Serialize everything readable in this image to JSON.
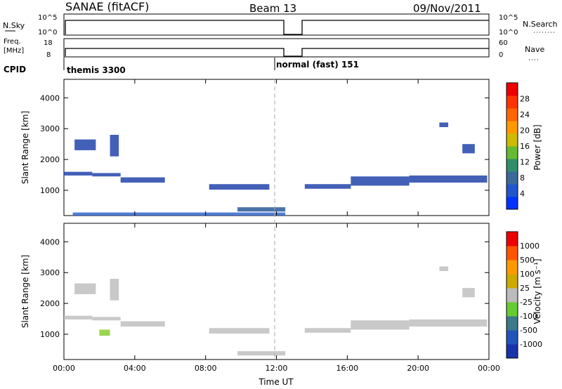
{
  "header": {
    "station": "SANAE (fitACF)",
    "beam": "Beam 13",
    "date": "09/Nov/2011"
  },
  "left_labels": {
    "nsky": "N.Sky",
    "freq": "Freq.",
    "freq_unit": "[MHz]",
    "cpid": "CPID"
  },
  "right_labels": {
    "nsearch": "N.Search",
    "nave": "Nave"
  },
  "ticks": {
    "nsky_top": "10^5",
    "nsky_bottom": "10^0",
    "freq_top": "18",
    "freq_bottom": "8",
    "nave_top": "60",
    "nave_bottom": "0"
  },
  "cpid_labels": {
    "first": "themis 3300",
    "second": "normal (fast) 151"
  },
  "chart_data": [
    {
      "type": "heatmap",
      "panel": "power",
      "xlabel": "",
      "ylabel": "Slant Range [km]",
      "x_ticks": [
        "00:00",
        "04:00",
        "08:00",
        "12:00",
        "16:00",
        "20:00",
        "00:00"
      ],
      "x_range_hours": [
        0,
        24
      ],
      "y_ticks": [
        1000,
        2000,
        3000,
        4000
      ],
      "y_range_km": [
        180,
        4600
      ],
      "colorbar_label": "Power [dB]",
      "colorbar_ticks": [
        "4",
        "8",
        "12",
        "16",
        "20",
        "24",
        "28"
      ],
      "colorbar_colors": [
        "#0033ff",
        "#2255cc",
        "#3a6a9a",
        "#2f8f6a",
        "#66bb33",
        "#ccbb00",
        "#ff9900",
        "#ff6600",
        "#ff3300",
        "#ee0000"
      ],
      "data_gap_hours": [
        12.6,
        13.5
      ],
      "bands": [
        {
          "x": [
            0,
            1.6
          ],
          "y": [
            1480,
            1600
          ],
          "color": "#2244aa"
        },
        {
          "x": [
            1.6,
            3.2
          ],
          "y": [
            1450,
            1560
          ],
          "color": "#2244aa"
        },
        {
          "x": [
            3.2,
            5.7
          ],
          "y": [
            1250,
            1420
          ],
          "color": "#2244aa"
        },
        {
          "x": [
            8.2,
            11.6
          ],
          "y": [
            1020,
            1200
          ],
          "color": "#2244aa"
        },
        {
          "x": [
            9.8,
            12.5
          ],
          "y": [
            310,
            450
          ],
          "color": "#2a5a9a"
        },
        {
          "x": [
            13.6,
            16.2
          ],
          "y": [
            1050,
            1200
          ],
          "color": "#2244aa"
        },
        {
          "x": [
            16.2,
            19.5
          ],
          "y": [
            1150,
            1450
          ],
          "color": "#2244aa"
        },
        {
          "x": [
            19.5,
            23.9
          ],
          "y": [
            1250,
            1480
          ],
          "color": "#2244aa"
        },
        {
          "x": [
            0.6,
            1.8
          ],
          "y": [
            2300,
            2650
          ],
          "color": "#2244aa"
        },
        {
          "x": [
            2.6,
            3.1
          ],
          "y": [
            2100,
            2800
          ],
          "color": "#2244aa"
        },
        {
          "x": [
            22.5,
            23.2
          ],
          "y": [
            2200,
            2500
          ],
          "color": "#2244aa"
        },
        {
          "x": [
            21.2,
            21.7
          ],
          "y": [
            3050,
            3200
          ],
          "color": "#2244aa"
        },
        {
          "x": [
            0.5,
            12.5
          ],
          "y": [
            180,
            280
          ],
          "color": "#3366cc"
        }
      ]
    },
    {
      "type": "heatmap",
      "panel": "velocity",
      "xlabel": "Time UT",
      "ylabel": "Slant Range [km]",
      "x_ticks": [
        "00:00",
        "04:00",
        "08:00",
        "12:00",
        "16:00",
        "20:00",
        "00:00"
      ],
      "x_range_hours": [
        0,
        24
      ],
      "y_ticks": [
        1000,
        2000,
        3000,
        4000
      ],
      "y_range_km": [
        180,
        4600
      ],
      "colorbar_label": "Velocity [m s⁻¹]",
      "colorbar_ticks": [
        "1000",
        "500",
        "100",
        "25",
        "-25",
        "-100",
        "-500",
        "-1000"
      ],
      "colorbar_colors": [
        "#1a33aa",
        "#2255bb",
        "#3a7a8a",
        "#66cc33",
        "#bbbbbb",
        "#ccaa00",
        "#ff9900",
        "#ff5500",
        "#ee0000"
      ],
      "data_gap_hours": [
        12.6,
        13.5
      ],
      "bands": [
        {
          "x": [
            0,
            1.6
          ],
          "y": [
            1480,
            1600
          ],
          "color": "#c0c0c0"
        },
        {
          "x": [
            1.6,
            3.2
          ],
          "y": [
            1450,
            1560
          ],
          "color": "#c0c0c0"
        },
        {
          "x": [
            3.2,
            5.7
          ],
          "y": [
            1250,
            1420
          ],
          "color": "#c0c0c0"
        },
        {
          "x": [
            8.2,
            11.6
          ],
          "y": [
            1020,
            1200
          ],
          "color": "#c0c0c0"
        },
        {
          "x": [
            9.8,
            12.5
          ],
          "y": [
            310,
            450
          ],
          "color": "#c0c0c0"
        },
        {
          "x": [
            13.6,
            16.2
          ],
          "y": [
            1050,
            1200
          ],
          "color": "#c0c0c0"
        },
        {
          "x": [
            16.2,
            19.5
          ],
          "y": [
            1150,
            1450
          ],
          "color": "#c0c0c0"
        },
        {
          "x": [
            19.5,
            23.9
          ],
          "y": [
            1250,
            1480
          ],
          "color": "#c0c0c0"
        },
        {
          "x": [
            0.6,
            1.8
          ],
          "y": [
            2300,
            2650
          ],
          "color": "#c0c0c0"
        },
        {
          "x": [
            2.6,
            3.1
          ],
          "y": [
            2100,
            2800
          ],
          "color": "#c0c0c0"
        },
        {
          "x": [
            22.5,
            23.2
          ],
          "y": [
            2200,
            2500
          ],
          "color": "#c0c0c0"
        },
        {
          "x": [
            21.2,
            21.7
          ],
          "y": [
            3050,
            3200
          ],
          "color": "#c0c0c0"
        },
        {
          "x": [
            2.0,
            2.6
          ],
          "y": [
            950,
            1150
          ],
          "color": "#88cc33"
        }
      ]
    }
  ]
}
